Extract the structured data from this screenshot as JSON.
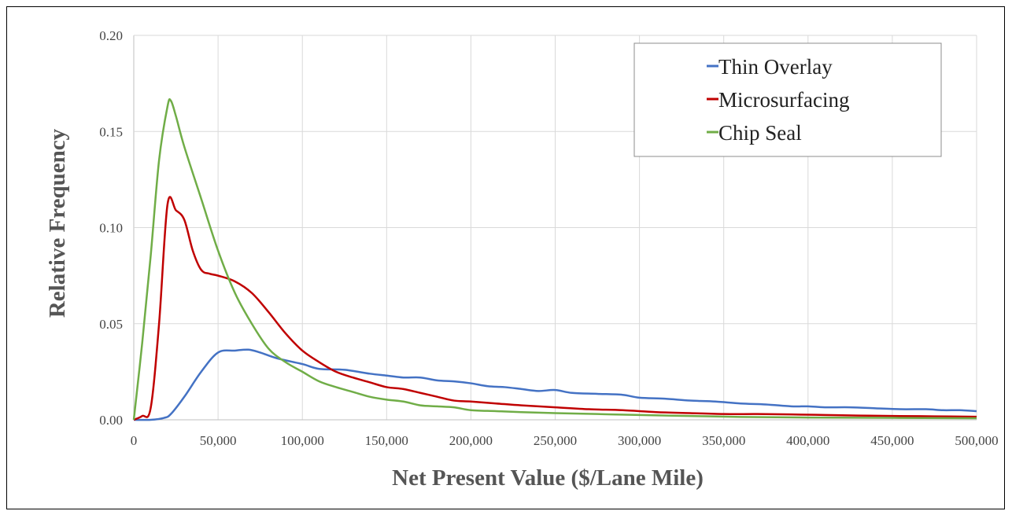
{
  "chart_data": {
    "type": "line",
    "title": "",
    "xlabel": "Net Present Value ($/Lane Mile)",
    "ylabel": "Relative Frequency",
    "xlim": [
      0,
      500000
    ],
    "ylim": [
      0,
      0.2
    ],
    "x_ticks": [
      0,
      50000,
      100000,
      150000,
      200000,
      250000,
      300000,
      350000,
      400000,
      450000,
      500000
    ],
    "x_tick_labels": [
      "0",
      "50,000",
      "100,000",
      "150,000",
      "200,000",
      "250,000",
      "300,000",
      "350,000",
      "400,000",
      "450,000",
      "500,000"
    ],
    "y_ticks": [
      0,
      0.05,
      0.1,
      0.15,
      0.2
    ],
    "y_tick_labels": [
      "0.00",
      "0.05",
      "0.10",
      "0.15",
      "0.20"
    ],
    "grid": true,
    "legend_position": "top-right",
    "series": [
      {
        "name": "Thin Overlay",
        "color": "#4472C4",
        "points": [
          [
            0,
            0
          ],
          [
            10000,
            0
          ],
          [
            18000,
            0.001
          ],
          [
            22000,
            0.003
          ],
          [
            30000,
            0.012
          ],
          [
            40000,
            0.025
          ],
          [
            50000,
            0.035
          ],
          [
            60000,
            0.036
          ],
          [
            68000,
            0.0365
          ],
          [
            75000,
            0.035
          ],
          [
            85000,
            0.032
          ],
          [
            100000,
            0.029
          ],
          [
            110000,
            0.0265
          ],
          [
            125000,
            0.026
          ],
          [
            140000,
            0.024
          ],
          [
            150000,
            0.023
          ],
          [
            160000,
            0.022
          ],
          [
            170000,
            0.022
          ],
          [
            180000,
            0.0205
          ],
          [
            190000,
            0.02
          ],
          [
            200000,
            0.019
          ],
          [
            210000,
            0.0175
          ],
          [
            220000,
            0.017
          ],
          [
            230000,
            0.016
          ],
          [
            240000,
            0.015
          ],
          [
            250000,
            0.0155
          ],
          [
            260000,
            0.014
          ],
          [
            275000,
            0.0135
          ],
          [
            290000,
            0.013
          ],
          [
            300000,
            0.0115
          ],
          [
            315000,
            0.011
          ],
          [
            330000,
            0.01
          ],
          [
            345000,
            0.0095
          ],
          [
            360000,
            0.0085
          ],
          [
            375000,
            0.008
          ],
          [
            390000,
            0.007
          ],
          [
            400000,
            0.007
          ],
          [
            410000,
            0.0065
          ],
          [
            425000,
            0.0065
          ],
          [
            440000,
            0.006
          ],
          [
            455000,
            0.0055
          ],
          [
            470000,
            0.0055
          ],
          [
            480000,
            0.005
          ],
          [
            490000,
            0.005
          ],
          [
            500000,
            0.0045
          ]
        ]
      },
      {
        "name": "Microsurfacing",
        "color": "#C00000",
        "points": [
          [
            0,
            0
          ],
          [
            5000,
            0.002
          ],
          [
            10000,
            0.006
          ],
          [
            15000,
            0.05
          ],
          [
            20000,
            0.112
          ],
          [
            25000,
            0.109
          ],
          [
            30000,
            0.104
          ],
          [
            35000,
            0.088
          ],
          [
            40000,
            0.078
          ],
          [
            45000,
            0.076
          ],
          [
            50000,
            0.075
          ],
          [
            60000,
            0.072
          ],
          [
            70000,
            0.066
          ],
          [
            80000,
            0.056
          ],
          [
            90000,
            0.045
          ],
          [
            100000,
            0.036
          ],
          [
            110000,
            0.03
          ],
          [
            120000,
            0.025
          ],
          [
            130000,
            0.022
          ],
          [
            140000,
            0.0195
          ],
          [
            150000,
            0.017
          ],
          [
            160000,
            0.016
          ],
          [
            170000,
            0.014
          ],
          [
            180000,
            0.012
          ],
          [
            190000,
            0.01
          ],
          [
            200000,
            0.0095
          ],
          [
            215000,
            0.0085
          ],
          [
            230000,
            0.0075
          ],
          [
            250000,
            0.0065
          ],
          [
            270000,
            0.0055
          ],
          [
            290000,
            0.005
          ],
          [
            310000,
            0.004
          ],
          [
            330000,
            0.0035
          ],
          [
            350000,
            0.003
          ],
          [
            370000,
            0.003
          ],
          [
            390000,
            0.0028
          ],
          [
            410000,
            0.0025
          ],
          [
            430000,
            0.0022
          ],
          [
            450000,
            0.002
          ],
          [
            475000,
            0.0018
          ],
          [
            500000,
            0.0016
          ]
        ]
      },
      {
        "name": "Chip Seal",
        "color": "#70AD47",
        "points": [
          [
            0,
            0
          ],
          [
            5000,
            0.04
          ],
          [
            10000,
            0.085
          ],
          [
            15000,
            0.135
          ],
          [
            20000,
            0.163
          ],
          [
            22000,
            0.166
          ],
          [
            25000,
            0.158
          ],
          [
            30000,
            0.142
          ],
          [
            40000,
            0.115
          ],
          [
            50000,
            0.088
          ],
          [
            60000,
            0.066
          ],
          [
            70000,
            0.05
          ],
          [
            80000,
            0.037
          ],
          [
            90000,
            0.03
          ],
          [
            100000,
            0.025
          ],
          [
            110000,
            0.02
          ],
          [
            120000,
            0.017
          ],
          [
            130000,
            0.0145
          ],
          [
            140000,
            0.012
          ],
          [
            150000,
            0.0105
          ],
          [
            160000,
            0.0095
          ],
          [
            170000,
            0.0075
          ],
          [
            180000,
            0.007
          ],
          [
            190000,
            0.0065
          ],
          [
            200000,
            0.005
          ],
          [
            215000,
            0.0045
          ],
          [
            230000,
            0.004
          ],
          [
            250000,
            0.0035
          ],
          [
            275000,
            0.003
          ],
          [
            300000,
            0.0025
          ],
          [
            330000,
            0.002
          ],
          [
            360000,
            0.0015
          ],
          [
            400000,
            0.0012
          ],
          [
            450000,
            0.001
          ],
          [
            500000,
            0.0008
          ]
        ]
      }
    ]
  }
}
